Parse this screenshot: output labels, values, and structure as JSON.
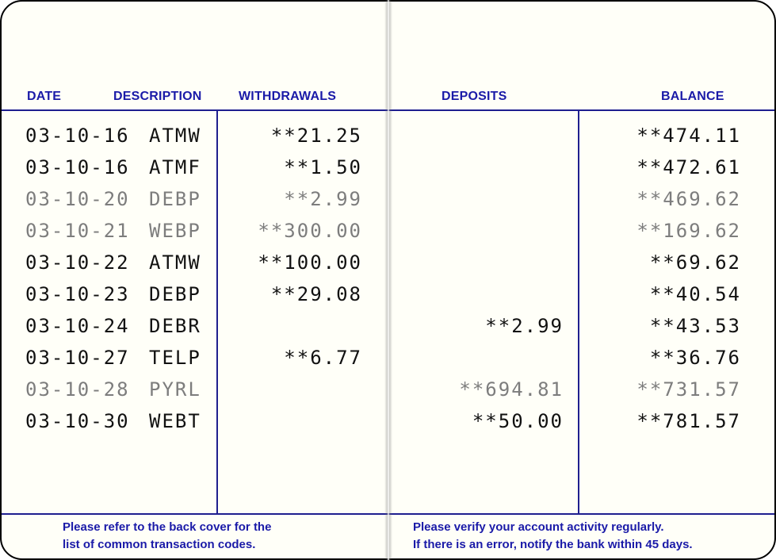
{
  "headers": {
    "date": "DATE",
    "description": "DESCRIPTION",
    "withdrawals": "WITHDRAWALS",
    "deposits": "DEPOSITS",
    "balance": "BALANCE"
  },
  "transactions": [
    {
      "date": "03-10-16",
      "code": "ATMW",
      "withdrawal": "**21.25",
      "deposit": "",
      "balance": "**474.11",
      "faint": false
    },
    {
      "date": "03-10-16",
      "code": "ATMF",
      "withdrawal": "**1.50",
      "deposit": "",
      "balance": "**472.61",
      "faint": false
    },
    {
      "date": "03-10-20",
      "code": "DEBP",
      "withdrawal": "**2.99",
      "deposit": "",
      "balance": "**469.62",
      "faint": true
    },
    {
      "date": "03-10-21",
      "code": "WEBP",
      "withdrawal": "**300.00",
      "deposit": "",
      "balance": "**169.62",
      "faint": true
    },
    {
      "date": "03-10-22",
      "code": "ATMW",
      "withdrawal": "**100.00",
      "deposit": "",
      "balance": "**69.62",
      "faint": false
    },
    {
      "date": "03-10-23",
      "code": "DEBP",
      "withdrawal": "**29.08",
      "deposit": "",
      "balance": "**40.54",
      "faint": false
    },
    {
      "date": "03-10-24",
      "code": "DEBR",
      "withdrawal": "",
      "deposit": "**2.99",
      "balance": "**43.53",
      "faint": false
    },
    {
      "date": "03-10-27",
      "code": "TELP",
      "withdrawal": "**6.77",
      "deposit": "",
      "balance": "**36.76",
      "faint": false
    },
    {
      "date": "03-10-28",
      "code": "PYRL",
      "withdrawal": "",
      "deposit": "**694.81",
      "balance": "**731.57",
      "faint": true
    },
    {
      "date": "03-10-30",
      "code": "WEBT",
      "withdrawal": "",
      "deposit": "**50.00",
      "balance": "**781.57",
      "faint": false
    }
  ],
  "footer": {
    "left": [
      "Please refer to the back cover for the",
      "list of common transaction codes."
    ],
    "right": [
      "Please verify your account activity regularly.",
      "If there is an error, notify the bank within 45 days."
    ]
  },
  "colors": {
    "rule_ink": "#1f1f8f",
    "header_ink": "#1a1aa8",
    "print_ink": "#111111",
    "faded_ink": "#7d7d7d",
    "paper": "#fffff8"
  }
}
